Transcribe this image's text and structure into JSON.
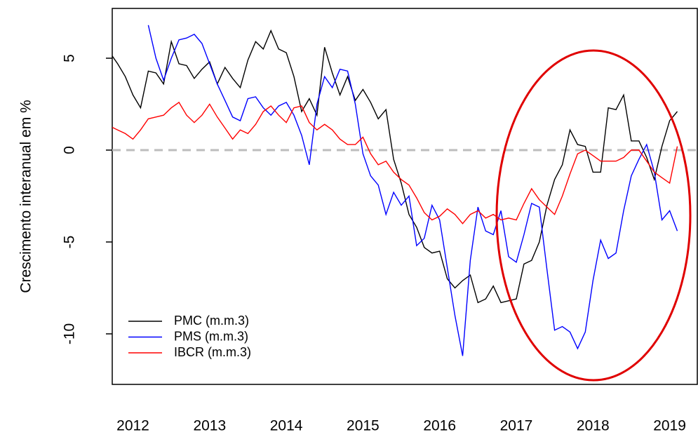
{
  "chart_data": {
    "type": "line",
    "ylabel": "Crescimento interanual em %",
    "x": [
      2011.7,
      2011.8,
      2011.9,
      2012.0,
      2012.1,
      2012.2,
      2012.3,
      2012.4,
      2012.5,
      2012.6,
      2012.7,
      2012.8,
      2012.9,
      2013.0,
      2013.1,
      2013.2,
      2013.3,
      2013.4,
      2013.5,
      2013.6,
      2013.7,
      2013.8,
      2013.9,
      2014.0,
      2014.1,
      2014.2,
      2014.3,
      2014.4,
      2014.5,
      2014.6,
      2014.7,
      2014.8,
      2014.9,
      2015.0,
      2015.1,
      2015.2,
      2015.3,
      2015.4,
      2015.5,
      2015.6,
      2015.7,
      2015.8,
      2015.9,
      2016.0,
      2016.1,
      2016.2,
      2016.3,
      2016.4,
      2016.5,
      2016.6,
      2016.7,
      2016.8,
      2016.9,
      2017.0,
      2017.1,
      2017.2,
      2017.3,
      2017.4,
      2017.5,
      2017.6,
      2017.7,
      2017.8,
      2017.9,
      2018.0,
      2018.1,
      2018.2,
      2018.3,
      2018.4,
      2018.5,
      2018.6,
      2018.7,
      2018.8,
      2018.9,
      2019.0,
      2019.1
    ],
    "series": [
      {
        "name": "PMC (m.m.3)",
        "color": "#000000",
        "values": [
          5.3,
          4.7,
          4.0,
          3.0,
          2.3,
          4.3,
          4.2,
          3.6,
          5.9,
          4.7,
          4.6,
          3.9,
          4.4,
          4.8,
          3.6,
          4.5,
          3.9,
          3.4,
          4.9,
          5.9,
          5.5,
          6.5,
          5.5,
          5.3,
          4.0,
          2.1,
          2.8,
          1.9,
          5.6,
          4.2,
          3.0,
          4.0,
          2.7,
          3.3,
          2.6,
          1.7,
          2.2,
          -0.5,
          -1.8,
          -3.5,
          -4.2,
          -5.3,
          -5.6,
          -5.5,
          -7.0,
          -7.5,
          -7.1,
          -6.8,
          -8.3,
          -8.1,
          -7.4,
          -8.3,
          -8.2,
          -8.1,
          -6.2,
          -6.0,
          -5.0,
          -3.0,
          -1.6,
          -0.8,
          1.1,
          0.3,
          0.2,
          -1.2,
          -1.2,
          2.3,
          2.2,
          3.0,
          0.5,
          0.5,
          -0.4,
          -1.6,
          0.2,
          1.6,
          2.1
        ]
      },
      {
        "name": "PMS (m.m.3)",
        "color": "#0000ff",
        "values": [
          null,
          null,
          null,
          null,
          null,
          6.8,
          5.0,
          3.8,
          5.0,
          6.0,
          6.1,
          6.3,
          5.8,
          4.7,
          3.6,
          2.7,
          1.8,
          1.6,
          2.8,
          2.9,
          2.3,
          1.9,
          2.4,
          2.6,
          1.9,
          0.8,
          -0.8,
          2.5,
          4.0,
          3.4,
          4.4,
          4.3,
          2.5,
          -0.2,
          -1.4,
          -1.9,
          -3.5,
          -2.3,
          -3.0,
          -2.5,
          -5.2,
          -4.8,
          -3.0,
          -3.8,
          -6.4,
          -9.0,
          -11.2,
          -6.0,
          -3.1,
          -4.4,
          -4.6,
          -3.3,
          -5.8,
          -6.1,
          -4.6,
          -2.9,
          -3.1,
          -6.5,
          -9.8,
          -9.6,
          -9.9,
          -10.8,
          -9.9,
          -7.1,
          -4.9,
          -5.9,
          -5.6,
          -3.3,
          -1.4,
          -0.5,
          0.3,
          -1.2,
          -3.8,
          -3.3,
          -4.4
        ]
      },
      {
        "name": "IBCR (m.m.3)",
        "color": "#ff0000",
        "values": [
          1.3,
          1.1,
          0.9,
          0.6,
          1.1,
          1.7,
          1.8,
          1.9,
          2.3,
          2.6,
          1.9,
          1.5,
          1.9,
          2.5,
          1.8,
          1.2,
          0.6,
          1.1,
          0.9,
          1.4,
          2.1,
          2.4,
          1.9,
          1.5,
          2.3,
          2.4,
          1.5,
          1.1,
          1.4,
          1.1,
          0.6,
          0.3,
          0.3,
          0.7,
          -0.2,
          -0.8,
          -0.6,
          -1.2,
          -1.6,
          -1.9,
          -2.6,
          -3.4,
          -3.8,
          -3.6,
          -3.2,
          -3.5,
          -4.0,
          -3.5,
          -3.3,
          -3.7,
          -3.5,
          -3.8,
          -3.7,
          -3.8,
          -2.9,
          -2.1,
          -2.7,
          -3.1,
          -3.5,
          -2.5,
          -1.3,
          -0.2,
          0.0,
          -0.3,
          -0.6,
          -0.6,
          -0.6,
          -0.4,
          0.0,
          0.0,
          -0.6,
          -1.2,
          -1.5,
          -1.8,
          0.2
        ]
      }
    ],
    "xlim": [
      2011.73,
      2019.37
    ],
    "ylim": [
      -12.75,
      7.71
    ],
    "xticks": [
      2012,
      2013,
      2014,
      2015,
      2016,
      2017,
      2018,
      2019
    ],
    "yticks": [
      -10,
      -5,
      0,
      5
    ],
    "hline": 0,
    "legend": "bottom-left"
  }
}
